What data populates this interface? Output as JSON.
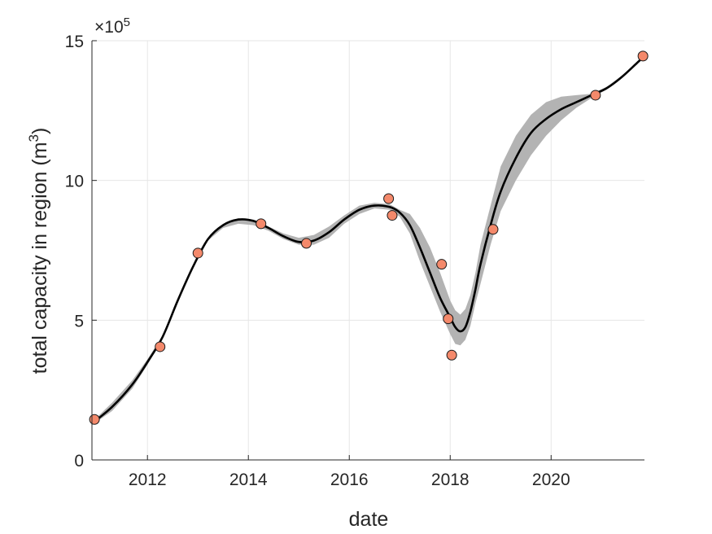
{
  "chart_data": {
    "type": "scatter",
    "title": "",
    "xlabel": "date",
    "ylabel_main": "total capacity in region (m",
    "ylabel_sup": "3",
    "ylabel_close": ")",
    "y_exponent_prefix": "×10",
    "y_exponent_sup": "5",
    "xlim": [
      2010.9,
      2021.85
    ],
    "ylim": [
      0,
      15
    ],
    "x_ticks": [
      2012,
      2014,
      2016,
      2018,
      2020
    ],
    "x_tick_labels": [
      "2012",
      "2014",
      "2016",
      "2018",
      "2020"
    ],
    "y_ticks": [
      0,
      5,
      10,
      15
    ],
    "y_tick_labels": [
      "0",
      "5",
      "10",
      "15"
    ],
    "grid": true,
    "legend": "none",
    "colors": {
      "points": "#f4896b",
      "point_edge": "#1a1a1a",
      "fit_line": "#000000",
      "band": "#b3b3b3",
      "grid": "#e6e6e6",
      "axis": "#262626"
    },
    "series": [
      {
        "kind": "points",
        "x": [
          2010.95,
          2012.25,
          2013.0,
          2014.25,
          2015.15,
          2016.78,
          2016.85,
          2017.83,
          2017.96,
          2018.03,
          2018.85,
          2020.88,
          2021.82
        ],
        "y": [
          1.45,
          4.05,
          7.4,
          8.45,
          7.75,
          9.35,
          8.75,
          7.0,
          5.05,
          3.75,
          8.25,
          13.05,
          14.45
        ]
      },
      {
        "kind": "fit",
        "x": [
          2010.9,
          2011.3,
          2011.7,
          2012.0,
          2012.3,
          2012.6,
          2012.9,
          2013.2,
          2013.5,
          2013.8,
          2014.1,
          2014.4,
          2014.7,
          2015.0,
          2015.3,
          2015.6,
          2015.9,
          2016.2,
          2016.5,
          2016.8,
          2017.0,
          2017.2,
          2017.4,
          2017.6,
          2017.8,
          2018.0,
          2018.1,
          2018.2,
          2018.3,
          2018.4,
          2018.5,
          2018.6,
          2018.8,
          2019.0,
          2019.3,
          2019.6,
          2019.9,
          2020.2,
          2020.5,
          2020.8,
          2021.1,
          2021.4,
          2021.7,
          2021.85
        ],
        "y": [
          1.3,
          1.9,
          2.7,
          3.5,
          4.4,
          5.7,
          6.9,
          7.9,
          8.4,
          8.6,
          8.55,
          8.3,
          8.0,
          7.8,
          7.85,
          8.15,
          8.6,
          8.95,
          9.1,
          9.05,
          8.85,
          8.4,
          7.6,
          6.7,
          5.8,
          5.1,
          4.75,
          4.6,
          4.75,
          5.3,
          6.1,
          7.0,
          8.4,
          9.6,
          10.8,
          11.7,
          12.2,
          12.55,
          12.8,
          13.05,
          13.3,
          13.7,
          14.2,
          14.45
        ]
      },
      {
        "kind": "band_upper",
        "x": [
          2010.9,
          2011.3,
          2011.7,
          2012.0,
          2012.3,
          2012.6,
          2012.9,
          2013.2,
          2013.5,
          2013.8,
          2014.1,
          2014.4,
          2014.7,
          2015.0,
          2015.3,
          2015.6,
          2015.9,
          2016.2,
          2016.5,
          2016.8,
          2017.0,
          2017.2,
          2017.4,
          2017.6,
          2017.8,
          2018.0,
          2018.1,
          2018.2,
          2018.3,
          2018.4,
          2018.5,
          2018.6,
          2018.8,
          2019.0,
          2019.3,
          2019.6,
          2019.9,
          2020.2,
          2020.5,
          2020.8,
          2021.1,
          2021.4,
          2021.7,
          2021.85
        ],
        "y": [
          1.35,
          2.05,
          2.85,
          3.6,
          4.45,
          5.75,
          6.95,
          7.95,
          8.45,
          8.65,
          8.6,
          8.35,
          8.1,
          7.95,
          8.05,
          8.35,
          8.75,
          9.1,
          9.2,
          9.15,
          8.95,
          8.8,
          8.3,
          7.6,
          6.7,
          5.7,
          5.35,
          5.2,
          5.4,
          5.9,
          6.7,
          7.7,
          9.1,
          10.5,
          11.6,
          12.35,
          12.8,
          13.0,
          13.05,
          13.1,
          13.35,
          13.75,
          14.2,
          14.45
        ]
      },
      {
        "kind": "band_lower",
        "x": [
          2010.9,
          2011.3,
          2011.7,
          2012.0,
          2012.3,
          2012.6,
          2012.9,
          2013.2,
          2013.5,
          2013.8,
          2014.1,
          2014.4,
          2014.7,
          2015.0,
          2015.3,
          2015.6,
          2015.9,
          2016.2,
          2016.5,
          2016.8,
          2017.0,
          2017.2,
          2017.4,
          2017.6,
          2017.8,
          2018.0,
          2018.1,
          2018.2,
          2018.3,
          2018.4,
          2018.5,
          2018.6,
          2018.8,
          2019.0,
          2019.3,
          2019.6,
          2019.9,
          2020.2,
          2020.5,
          2020.8,
          2021.1,
          2021.4,
          2021.7,
          2021.85
        ],
        "y": [
          1.25,
          1.75,
          2.55,
          3.4,
          4.35,
          5.65,
          6.85,
          7.85,
          8.3,
          8.45,
          8.4,
          8.2,
          7.9,
          7.7,
          7.7,
          7.95,
          8.45,
          8.8,
          9.0,
          8.95,
          8.7,
          8.1,
          7.1,
          6.2,
          5.3,
          4.5,
          4.15,
          4.1,
          4.3,
          4.8,
          5.6,
          6.3,
          7.7,
          8.9,
          10.0,
          10.9,
          11.6,
          12.15,
          12.6,
          12.95,
          13.25,
          13.65,
          14.2,
          14.45
        ]
      }
    ]
  }
}
